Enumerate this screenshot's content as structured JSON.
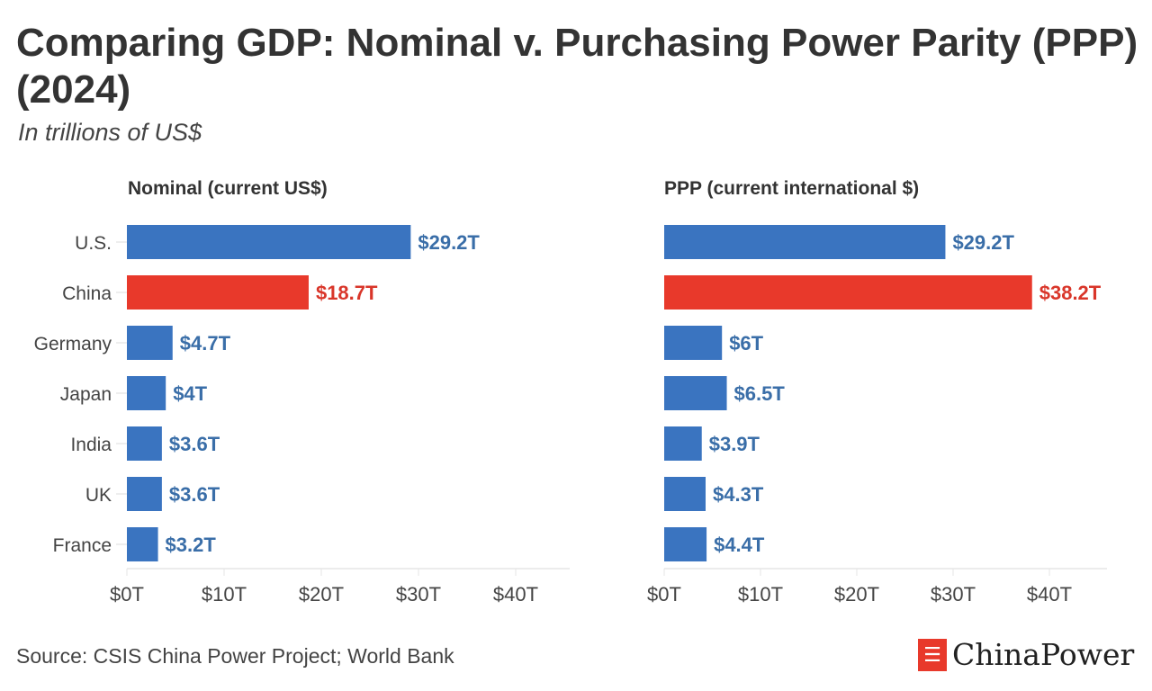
{
  "title": "Comparing GDP: Nominal v. Purchasing Power Parity (PPP) (2024)",
  "subtitle": "In trillions of US$",
  "source": "Source: CSIS China Power Project; World Bank",
  "logo": "ChinaPower",
  "colors": {
    "default": "#3a74c0",
    "highlight": "#e8392b",
    "label_default": "#3a6ea8",
    "label_highlight": "#d9362a"
  },
  "chart_data": [
    {
      "type": "bar",
      "orientation": "horizontal",
      "title": "Nominal (current US$)",
      "categories": [
        "U.S.",
        "China",
        "Germany",
        "Japan",
        "India",
        "UK",
        "France"
      ],
      "values": [
        29.2,
        18.7,
        4.7,
        4,
        3.6,
        3.6,
        3.2
      ],
      "labels": [
        "$29.2T",
        "$18.7T",
        "$4.7T",
        "$4T",
        "$3.6T",
        "$3.6T",
        "$3.2T"
      ],
      "highlight": "China",
      "xlim": [
        0,
        45
      ],
      "xticks": [
        0,
        10,
        20,
        30,
        40
      ],
      "xtick_labels": [
        "$0T",
        "$10T",
        "$20T",
        "$30T",
        "$40T"
      ],
      "grid": false
    },
    {
      "type": "bar",
      "orientation": "horizontal",
      "title": "PPP (current international $)",
      "categories": [
        "U.S.",
        "China",
        "Germany",
        "Japan",
        "India",
        "UK",
        "France"
      ],
      "values": [
        29.2,
        38.2,
        6,
        6.5,
        3.9,
        4.3,
        4.4
      ],
      "labels": [
        "$29.2T",
        "$38.2T",
        "$6T",
        "$6.5T",
        "$3.9T",
        "$4.3T",
        "$4.4T"
      ],
      "highlight": "China",
      "xlim": [
        0,
        45
      ],
      "xticks": [
        0,
        10,
        20,
        30,
        40
      ],
      "xtick_labels": [
        "$0T",
        "$10T",
        "$20T",
        "$30T",
        "$40T"
      ],
      "grid": false
    }
  ]
}
